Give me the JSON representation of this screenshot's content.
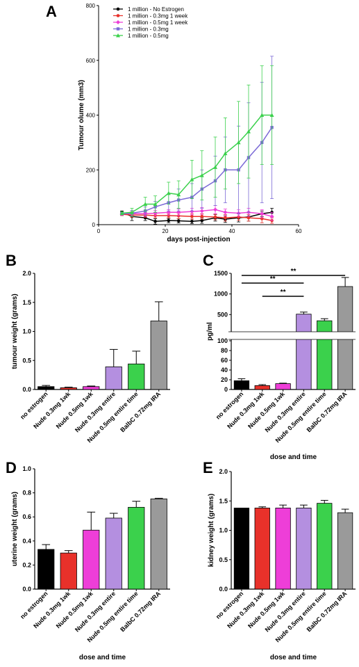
{
  "colors": {
    "black": "#000000",
    "red": "#e8312a",
    "magenta": "#ee3ed8",
    "lavender": "#b48fe0",
    "purple": "#7b6ad6",
    "green": "#3bd14c",
    "gray": "#9a9a9a"
  },
  "chart_data": [
    {
      "panel": "A",
      "type": "line",
      "xlabel": "days post-injection",
      "ylabel": "Tumour olume (mm3)",
      "xlim": [
        0,
        60
      ],
      "ylim": [
        0,
        800
      ],
      "xticks": [
        "0",
        "20",
        "40",
        "60"
      ],
      "yticks": [
        "0",
        "200",
        "400",
        "600",
        "800"
      ],
      "legend_position": "top-left",
      "series": [
        {
          "name": "1 million - No Estrogen",
          "color": "#000000",
          "marker": "circle",
          "x": [
            7,
            10,
            14,
            17,
            21,
            24,
            28,
            31,
            35,
            38,
            42,
            45,
            49,
            52
          ],
          "y": [
            45,
            30,
            25,
            12,
            15,
            14,
            12,
            15,
            25,
            20,
            25,
            28,
            40,
            45
          ],
          "err": [
            5,
            15,
            10,
            10,
            8,
            8,
            8,
            10,
            12,
            12,
            15,
            15,
            10,
            15
          ]
        },
        {
          "name": "1 million - 0.3mg 1 week",
          "color": "#e8312a",
          "marker": "circle",
          "x": [
            7,
            10,
            14,
            17,
            21,
            24,
            28,
            31,
            35,
            38,
            42,
            45,
            49,
            52
          ],
          "y": [
            38,
            35,
            35,
            33,
            33,
            32,
            30,
            30,
            28,
            25,
            28,
            25,
            22,
            15
          ],
          "err": [
            5,
            8,
            8,
            8,
            8,
            10,
            10,
            10,
            10,
            12,
            12,
            12,
            15,
            10
          ]
        },
        {
          "name": "1 million - 0.5mg 1 week",
          "color": "#ee3ed8",
          "marker": "diamond",
          "x": [
            7,
            10,
            14,
            17,
            21,
            24,
            28,
            31,
            35,
            38,
            42,
            45,
            49,
            52
          ],
          "y": [
            40,
            40,
            40,
            42,
            45,
            45,
            48,
            50,
            55,
            45,
            42,
            45,
            40,
            30
          ],
          "err": [
            5,
            8,
            10,
            10,
            10,
            12,
            12,
            12,
            15,
            12,
            12,
            15,
            15,
            15
          ]
        },
        {
          "name": "1 million - 0.3mg",
          "color": "#7b6ad6",
          "marker": "square",
          "x": [
            7,
            10,
            14,
            17,
            21,
            24,
            28,
            31,
            35,
            38,
            42,
            45,
            49,
            52
          ],
          "y": [
            40,
            42,
            50,
            65,
            80,
            90,
            100,
            130,
            160,
            200,
            200,
            245,
            300,
            355
          ],
          "err": [
            5,
            10,
            15,
            20,
            30,
            40,
            50,
            70,
            90,
            120,
            160,
            200,
            220,
            260
          ]
        },
        {
          "name": "1 million - 0.5mg",
          "color": "#3bd14c",
          "marker": "triangle",
          "x": [
            7,
            10,
            14,
            17,
            21,
            24,
            28,
            31,
            35,
            38,
            42,
            45,
            49,
            52
          ],
          "y": [
            42,
            45,
            75,
            75,
            115,
            110,
            165,
            180,
            210,
            260,
            300,
            340,
            400,
            400
          ],
          "err": [
            5,
            15,
            25,
            30,
            40,
            50,
            70,
            90,
            110,
            130,
            150,
            170,
            180,
            180
          ]
        }
      ]
    },
    {
      "panel": "B",
      "type": "bar",
      "xlabel": "",
      "ylabel": "tumour weight (grams)",
      "ylim": [
        0,
        2.0
      ],
      "yticks": [
        "0.0",
        "0.5",
        "1.0",
        "1.5",
        "2.0"
      ],
      "categories": [
        "no estrogen",
        "Nude 0.3mg 1wk",
        "Nude 0.5mg 1wk",
        "Nude 0.3mg entire",
        "Nude 0.5mg entire time",
        "BalbC 0.72mg IRA"
      ],
      "values": [
        0.05,
        0.03,
        0.05,
        0.39,
        0.44,
        1.18
      ],
      "errors": [
        0.02,
        0.01,
        0.01,
        0.3,
        0.22,
        0.33
      ],
      "bar_colors": [
        "#000000",
        "#e8312a",
        "#ee3ed8",
        "#b48fe0",
        "#3bd14c",
        "#9a9a9a"
      ]
    },
    {
      "panel": "C",
      "type": "bar",
      "xlabel": "dose and time",
      "ylabel": "pg/ml",
      "axis_break": true,
      "lower_ylim": [
        0,
        100
      ],
      "upper_ylim": [
        100,
        1500
      ],
      "lower_yticks": [
        "0",
        "20",
        "40",
        "60",
        "80",
        "100"
      ],
      "upper_yticks": [
        "500",
        "1000",
        "1500"
      ],
      "categories": [
        "no estrogen",
        "Nude 0.3mg 1wk",
        "Nude 0.5mg 1wk",
        "Nude 0.3mg entire",
        "Nude 0.5mg entire time",
        "BalbC 0.72mg IRA"
      ],
      "values": [
        18,
        8,
        12,
        510,
        350,
        1180
      ],
      "errors": [
        4,
        2,
        1,
        50,
        50,
        220
      ],
      "bar_colors": [
        "#000000",
        "#e8312a",
        "#ee3ed8",
        "#b48fe0",
        "#3bd14c",
        "#9a9a9a"
      ],
      "significance": [
        {
          "from": 0,
          "to": 5,
          "label": "**"
        },
        {
          "from": 0,
          "to": 3,
          "label": "**"
        },
        {
          "from": 1,
          "to": 3,
          "label": "**"
        }
      ]
    },
    {
      "panel": "D",
      "type": "bar",
      "xlabel": "dose and time",
      "ylabel": "uterine weight (grams)",
      "ylim": [
        0,
        1.0
      ],
      "yticks": [
        "0.0",
        "0.2",
        "0.4",
        "0.6",
        "0.8",
        "1.0"
      ],
      "categories": [
        "no estrogen",
        "Nude 0.3mg 1wk",
        "Nude 0.5mg 1wk",
        "Nude 0.3mg entire",
        "Nude 0.5mg entire time",
        "BalbC 0.72mg IRA"
      ],
      "values": [
        0.33,
        0.3,
        0.49,
        0.59,
        0.68,
        0.75
      ],
      "errors": [
        0.04,
        0.02,
        0.15,
        0.04,
        0.05,
        0.005
      ],
      "bar_colors": [
        "#000000",
        "#e8312a",
        "#ee3ed8",
        "#b48fe0",
        "#3bd14c",
        "#9a9a9a"
      ]
    },
    {
      "panel": "E",
      "type": "bar",
      "xlabel": "dose and time",
      "ylabel": "kidney weight (grams)",
      "ylim": [
        0,
        2.0
      ],
      "yticks": [
        "0.0",
        "0.5",
        "1.0",
        "1.5",
        "2.0"
      ],
      "categories": [
        "no estrogen",
        "Nude 0.3mg 1wk",
        "Nude 0.5mg 1wk",
        "Nude 0.3mg entire",
        "Nude 0.5mg entire time",
        "BalbC 0.72mg IRA"
      ],
      "values": [
        1.38,
        1.38,
        1.38,
        1.38,
        1.46,
        1.3
      ],
      "errors": [
        0.0,
        0.02,
        0.05,
        0.05,
        0.05,
        0.06
      ],
      "bar_colors": [
        "#000000",
        "#e8312a",
        "#ee3ed8",
        "#b48fe0",
        "#3bd14c",
        "#9a9a9a"
      ]
    }
  ],
  "panel_labels": [
    "A",
    "B",
    "C",
    "D",
    "E"
  ]
}
